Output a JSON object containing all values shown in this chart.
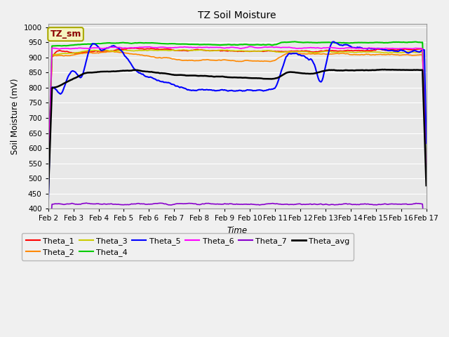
{
  "title": "TZ Soil Moisture",
  "xlabel": "Time",
  "ylabel": "Soil Moisture (mV)",
  "ylim": [
    400,
    1010
  ],
  "yticks": [
    400,
    450,
    500,
    550,
    600,
    650,
    700,
    750,
    800,
    850,
    900,
    950,
    1000
  ],
  "fig_bg_color": "#f0f0f0",
  "plot_bg_color": "#e8e8e8",
  "legend_label": "TZ_sm",
  "legend_text_color": "#8B0000",
  "legend_box_facecolor": "#f5f5c0",
  "legend_box_edgecolor": "#aaaa00",
  "xtick_labels": [
    "Feb 2",
    "Feb 3",
    "Feb 4",
    "Feb 5",
    "Feb 6",
    "Feb 7",
    "Feb 8",
    "Feb 9",
    "Feb 10",
    "Feb 11",
    "Feb 12",
    "Feb 13",
    "Feb 14",
    "Feb 15",
    "Feb 16",
    "Feb 17"
  ],
  "series": {
    "Theta_1": {
      "color": "#ff0000",
      "lw": 1.2
    },
    "Theta_2": {
      "color": "#ff8800",
      "lw": 1.2
    },
    "Theta_3": {
      "color": "#cccc00",
      "lw": 1.2
    },
    "Theta_4": {
      "color": "#00cc00",
      "lw": 1.5
    },
    "Theta_5": {
      "color": "#0000ff",
      "lw": 1.5
    },
    "Theta_6": {
      "color": "#ff00ff",
      "lw": 1.2
    },
    "Theta_7": {
      "color": "#8800cc",
      "lw": 1.2
    },
    "Theta_avg": {
      "color": "#000000",
      "lw": 1.8
    }
  }
}
